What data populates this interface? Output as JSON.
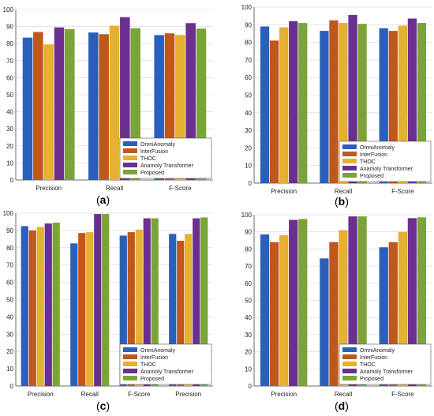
{
  "colors": {
    "OmniAnomaly": "#2c5fb9",
    "InterFusion": "#c0571d",
    "THOC": "#e5b12e",
    "Anamoly Transformer": "#6a2f8f",
    "Proposed": "#7aa43a",
    "grid": "#d6d6d6",
    "axis": "#444444"
  },
  "chart_data": [
    {
      "type": "bar",
      "panel_label": "(a)",
      "panel_letter": "a",
      "categories": [
        "Precision",
        "Recall",
        "F-Score"
      ],
      "ylim": [
        0,
        100
      ],
      "yticks": [
        0,
        10,
        20,
        30,
        40,
        50,
        60,
        70,
        80,
        90,
        100
      ],
      "grid": true,
      "legend_position": "bottom-right",
      "series": [
        {
          "name": "OmniAnomaly",
          "values": [
            83.5,
            86.5,
            85.0
          ]
        },
        {
          "name": "InterFusion",
          "values": [
            86.8,
            85.5,
            86.0
          ]
        },
        {
          "name": "THOC",
          "values": [
            79.5,
            90.5,
            85.0
          ]
        },
        {
          "name": "Anamoly Transformer",
          "values": [
            89.5,
            95.5,
            92.0
          ]
        },
        {
          "name": "Proposed",
          "values": [
            88.5,
            89.0,
            88.8
          ]
        }
      ]
    },
    {
      "type": "bar",
      "panel_label": "(b)",
      "panel_letter": "b",
      "categories": [
        "Precision",
        "Recall",
        "F-Score"
      ],
      "ylim": [
        0,
        100
      ],
      "yticks": [
        0,
        10,
        20,
        30,
        40,
        50,
        60,
        70,
        80,
        90,
        100
      ],
      "grid": true,
      "legend_position": "bottom-right",
      "series": [
        {
          "name": "OmniAnomaly",
          "values": [
            89.0,
            86.5,
            88.0
          ]
        },
        {
          "name": "InterFusion",
          "values": [
            81.0,
            92.5,
            86.5
          ]
        },
        {
          "name": "THOC",
          "values": [
            88.5,
            91.0,
            89.5
          ]
        },
        {
          "name": "Anamoly Transformer",
          "values": [
            92.0,
            95.5,
            93.5
          ]
        },
        {
          "name": "Proposed",
          "values": [
            91.0,
            90.5,
            91.0
          ]
        }
      ]
    },
    {
      "type": "bar",
      "panel_label": "(c)",
      "panel_letter": "c",
      "categories": [
        "Precision",
        "Recall",
        "F-Score",
        "Precision"
      ],
      "ylim": [
        0,
        100
      ],
      "yticks": [
        0,
        10,
        20,
        30,
        40,
        50,
        60,
        70,
        80,
        90,
        100
      ],
      "grid": true,
      "legend_position": "bottom-right",
      "series": [
        {
          "name": "OmniAnomaly",
          "values": [
            92.5,
            82.5,
            87.0,
            88.0
          ]
        },
        {
          "name": "InterFusion",
          "values": [
            90.0,
            88.5,
            89.0,
            84.0
          ]
        },
        {
          "name": "THOC",
          "values": [
            92.0,
            89.0,
            90.5,
            88.0
          ]
        },
        {
          "name": "Anamoly Transformer",
          "values": [
            94.0,
            99.5,
            97.0,
            97.0
          ]
        },
        {
          "name": "Proposed",
          "values": [
            94.5,
            99.5,
            97.0,
            97.5
          ]
        }
      ]
    },
    {
      "type": "bar",
      "panel_label": "(d)",
      "panel_letter": "d",
      "categories": [
        "Precision",
        "Recall",
        "F-Score"
      ],
      "ylim": [
        0,
        100
      ],
      "yticks": [
        0,
        10,
        20,
        30,
        40,
        50,
        60,
        70,
        80,
        90,
        100
      ],
      "grid": true,
      "legend_position": "bottom-right",
      "series": [
        {
          "name": "OmniAnomaly",
          "values": [
            88.5,
            74.5,
            81.0
          ]
        },
        {
          "name": "InterFusion",
          "values": [
            84.0,
            84.0,
            84.0
          ]
        },
        {
          "name": "THOC",
          "values": [
            88.0,
            91.0,
            90.0
          ]
        },
        {
          "name": "Anamoly Transformer",
          "values": [
            97.0,
            99.0,
            98.0
          ]
        },
        {
          "name": "Proposed",
          "values": [
            97.5,
            99.0,
            98.5
          ]
        }
      ]
    }
  ]
}
